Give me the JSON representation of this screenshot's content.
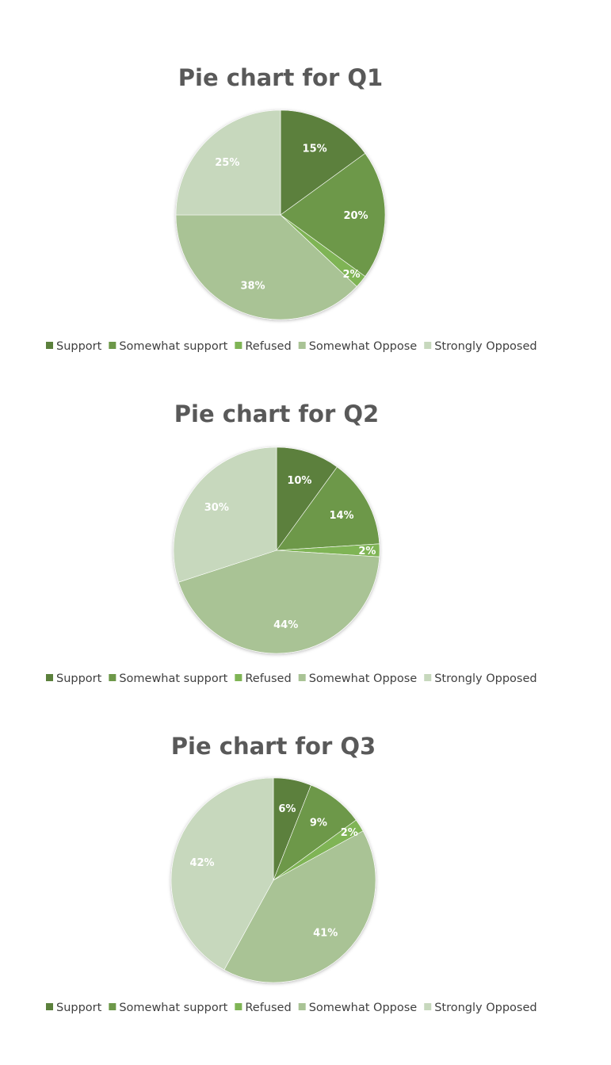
{
  "colors": {
    "Support": "#5b803c",
    "Somewhat support": "#6d9849",
    "Refused": "#7fb455",
    "Somewhat Oppose": "#a9c395",
    "Strongly Opposed": "#c7d8bd"
  },
  "chart_data": [
    {
      "type": "pie",
      "title": "Pie chart for Q1",
      "categories": [
        "Support",
        "Somewhat support",
        "Refused",
        "Somewhat Oppose",
        "Strongly Opposed"
      ],
      "values": [
        15,
        20,
        2,
        38,
        25
      ],
      "labels": [
        "15%",
        "20%",
        "2%",
        "38%",
        "25%"
      ],
      "legend": "bottom"
    },
    {
      "type": "pie",
      "title": "Pie chart for Q2",
      "categories": [
        "Support",
        "Somewhat support",
        "Refused",
        "Somewhat Oppose",
        "Strongly Opposed"
      ],
      "values": [
        10,
        14,
        2,
        44,
        30
      ],
      "labels": [
        "10%",
        "14%",
        "2%",
        "44%",
        "30%"
      ],
      "legend": "bottom"
    },
    {
      "type": "pie",
      "title": "Pie chart for Q3",
      "categories": [
        "Support",
        "Somewhat support",
        "Refused",
        "Somewhat Oppose",
        "Strongly Opposed"
      ],
      "values": [
        6,
        9,
        2,
        41,
        42
      ],
      "labels": [
        "6%",
        "9%",
        "2%",
        "41%",
        "42%"
      ],
      "legend": "bottom"
    }
  ]
}
